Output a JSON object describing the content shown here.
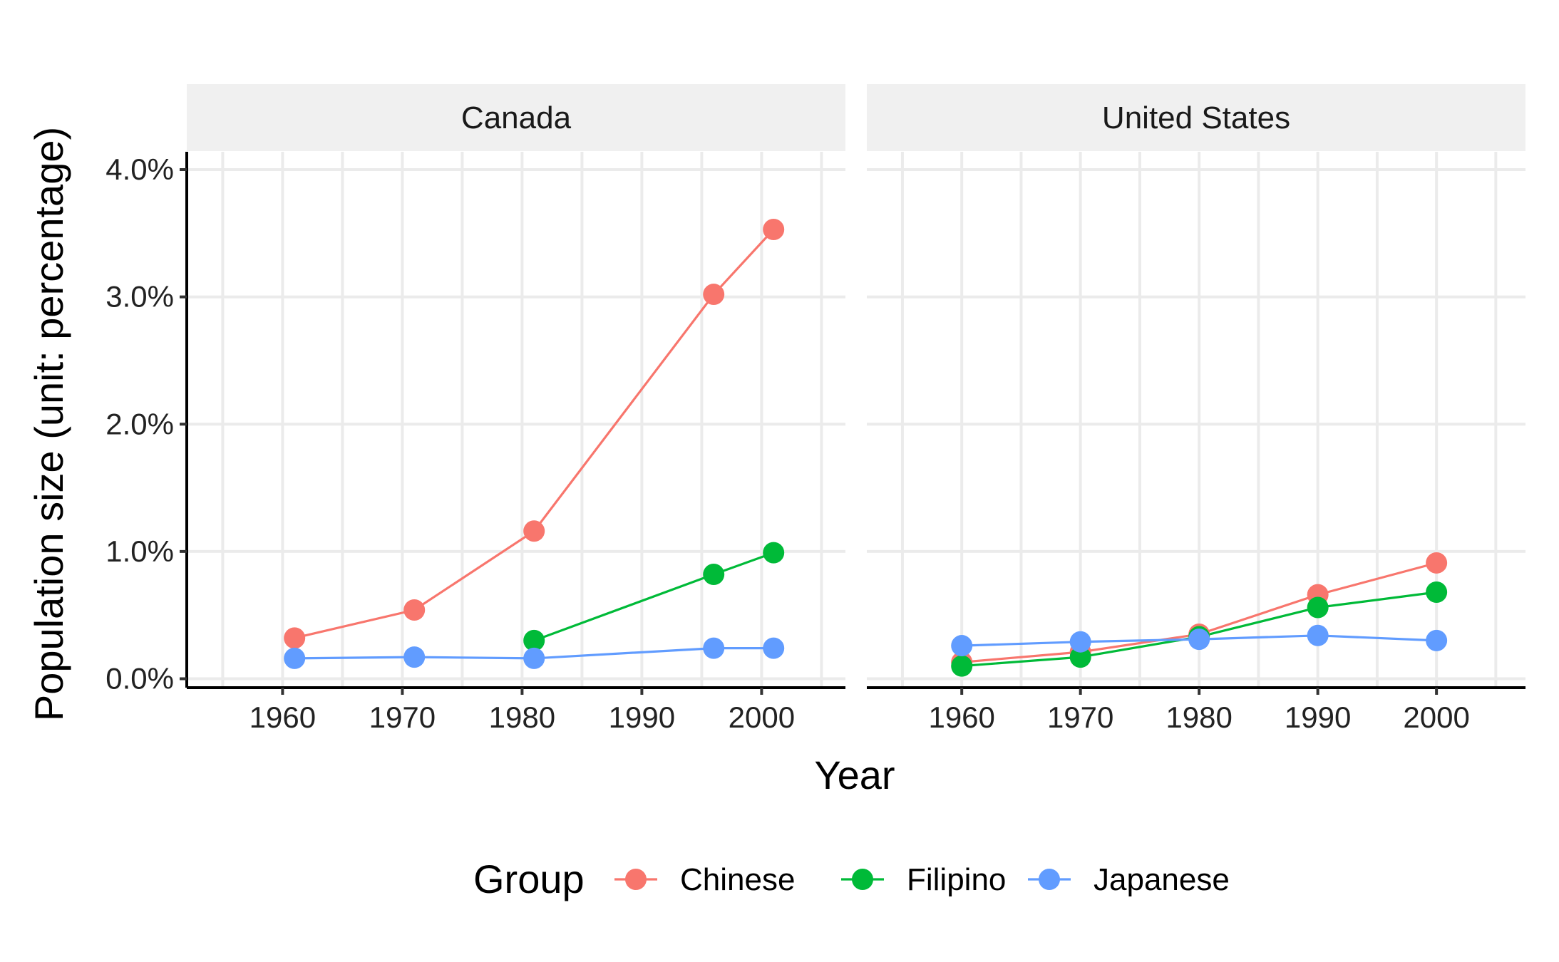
{
  "chart_data": {
    "type": "line",
    "xlabel": "Year",
    "ylabel": "Population size (unit: percentage)",
    "ylim": [
      -0.07,
      4.14
    ],
    "yticks": [
      0.0,
      1.0,
      2.0,
      3.0,
      4.0
    ],
    "ytick_labels": [
      "0.0%",
      "1.0%",
      "2.0%",
      "3.0%",
      "4.0%"
    ],
    "grid": true,
    "legend": {
      "title": "Group",
      "placement": "bottom",
      "entries": [
        "Chinese",
        "Filipino",
        "Japanese"
      ]
    },
    "colors": {
      "Chinese": "#F8766D",
      "Filipino": "#00BA38",
      "Japanese": "#619CFF"
    },
    "panels": [
      {
        "title": "Canada",
        "xlim": [
          1952,
          2007
        ],
        "xticks": [
          1960,
          1970,
          1980,
          1990,
          2000
        ],
        "series": [
          {
            "name": "Chinese",
            "x": [
              1961,
              1971,
              1981,
              1996,
              2001
            ],
            "values": [
              0.32,
              0.54,
              1.16,
              3.02,
              3.53
            ]
          },
          {
            "name": "Filipino",
            "x": [
              1981,
              1996,
              2001
            ],
            "values": [
              0.3,
              0.82,
              0.99
            ]
          },
          {
            "name": "Japanese",
            "x": [
              1961,
              1971,
              1981,
              1996,
              2001
            ],
            "values": [
              0.16,
              0.17,
              0.16,
              0.24,
              0.24
            ]
          }
        ]
      },
      {
        "title": "United States",
        "xlim": [
          1952,
          2007.5
        ],
        "xticks": [
          1960,
          1970,
          1980,
          1990,
          2000
        ],
        "series": [
          {
            "name": "Chinese",
            "x": [
              1960,
              1970,
              1980,
              1990,
              2000
            ],
            "values": [
              0.13,
              0.21,
              0.35,
              0.66,
              0.91
            ]
          },
          {
            "name": "Filipino",
            "x": [
              1960,
              1970,
              1980,
              1990,
              2000
            ],
            "values": [
              0.1,
              0.17,
              0.33,
              0.56,
              0.68
            ]
          },
          {
            "name": "Japanese",
            "x": [
              1960,
              1970,
              1980,
              1990,
              2000
            ],
            "values": [
              0.26,
              0.29,
              0.31,
              0.34,
              0.3
            ]
          }
        ]
      }
    ]
  }
}
